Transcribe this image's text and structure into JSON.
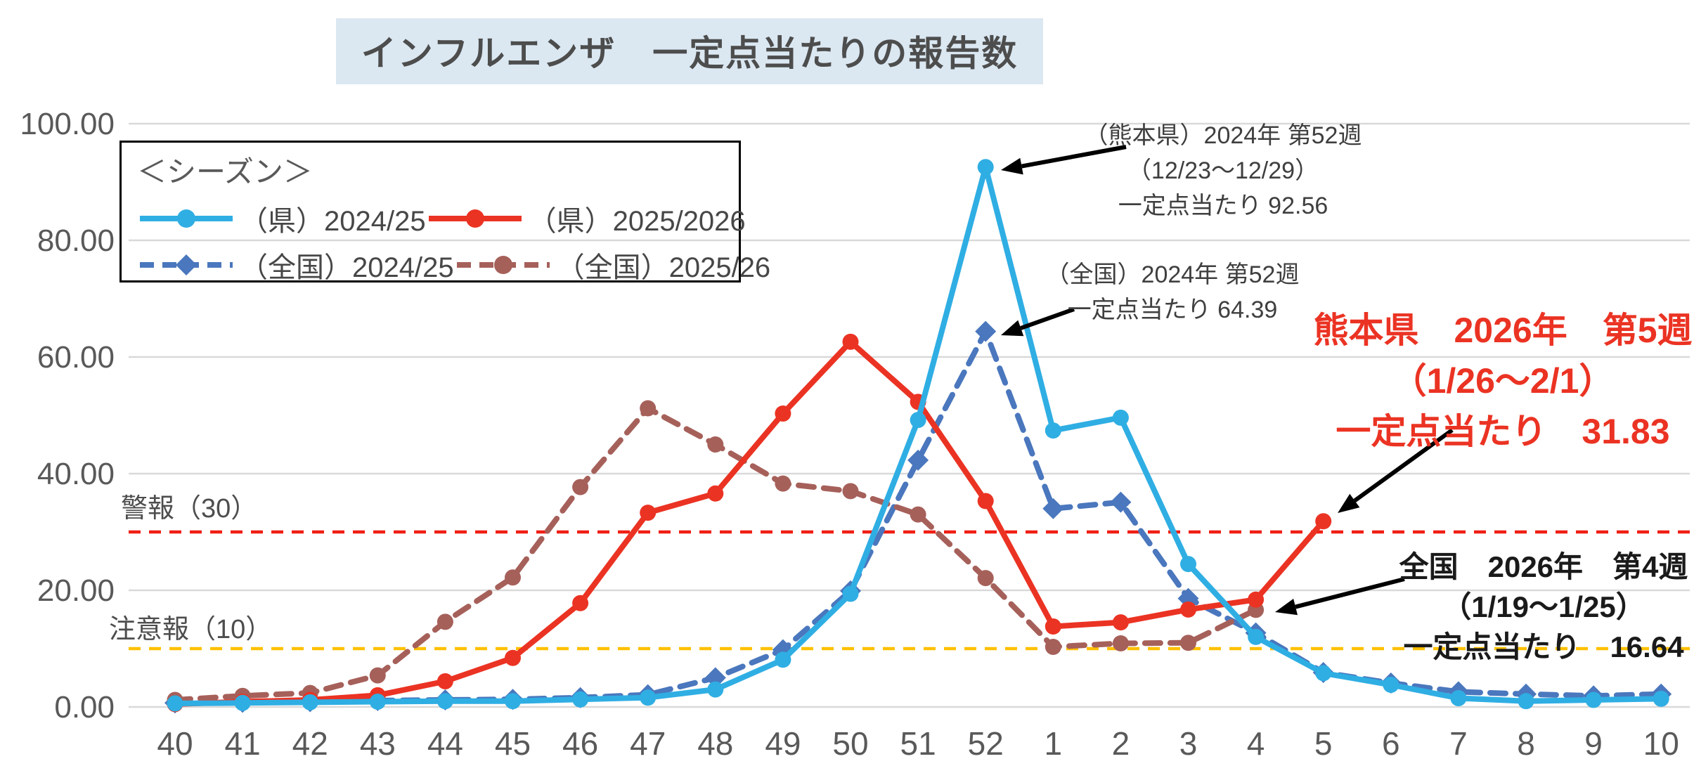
{
  "title": "インフルエンザ　一定点当たりの報告数",
  "legend": {
    "header": "＜シーズン＞"
  },
  "reference_labels": {
    "alert": "警報（30）",
    "caution": "注意報（10）"
  },
  "annotations": [
    {
      "id": "pref-peak",
      "lines": [
        "（熊本県）2024年 第52週",
        "（12/23～12/29）",
        "一定点当たり 92.56"
      ],
      "color": "#3f3f3f"
    },
    {
      "id": "national-peak",
      "lines": [
        "（全国）2024年 第52週",
        "一定点当たり 64.39"
      ],
      "color": "#3f3f3f"
    },
    {
      "id": "pref-current",
      "lines": [
        "熊本県　2026年　第5週",
        "（1/26～2/1）",
        "一定点当たり　31.83"
      ],
      "color": "#eb3323"
    },
    {
      "id": "national-current",
      "lines": [
        "全国　2026年　第4週",
        "（1/19～1/25）",
        "一定点当たり　16.64"
      ],
      "color": "#1a1a1a"
    }
  ],
  "chart_data": {
    "type": "line",
    "title": "インフルエンザ　一定点当たりの報告数",
    "xlabel": "",
    "ylabel": "",
    "ylim": [
      0,
      100
    ],
    "y_tick_labels": [
      "0.00",
      "20.00",
      "40.00",
      "60.00",
      "80.00",
      "100.00"
    ],
    "grid": true,
    "legend_position": "top-left",
    "categories": [
      "40",
      "41",
      "42",
      "43",
      "44",
      "45",
      "46",
      "47",
      "48",
      "49",
      "50",
      "51",
      "52",
      "1",
      "2",
      "3",
      "4",
      "5",
      "6",
      "7",
      "8",
      "9",
      "10"
    ],
    "series": [
      {
        "id": "pref-2024-25",
        "name": "（県）2024/25",
        "color": "#2faee3",
        "line": "solid",
        "marker": "circle",
        "values": [
          0.6,
          0.7,
          0.8,
          0.9,
          1.0,
          1.0,
          1.3,
          1.6,
          3.0,
          8.1,
          19.4,
          49.2,
          92.56,
          47.4,
          49.6,
          24.5,
          12.0,
          5.8,
          3.8,
          1.5,
          1.0,
          1.2,
          1.4
        ]
      },
      {
        "id": "pref-2025-26",
        "name": "（県）2025/2026",
        "color": "#eb3323",
        "line": "solid",
        "marker": "circle",
        "values": [
          0.5,
          0.9,
          1.2,
          2.0,
          4.4,
          8.4,
          17.8,
          33.3,
          36.6,
          50.3,
          62.6,
          52.3,
          35.3,
          13.8,
          14.5,
          16.7,
          18.4,
          31.83,
          null,
          null,
          null,
          null,
          null
        ]
      },
      {
        "id": "national-2024-25",
        "name": "（全国）2024/25",
        "color": "#4a77bd",
        "line": "dashed",
        "marker": "diamond",
        "values": [
          0.7,
          0.8,
          0.9,
          1.1,
          1.2,
          1.3,
          1.6,
          2.1,
          5.0,
          9.8,
          19.9,
          42.3,
          64.39,
          34.0,
          35.1,
          18.6,
          12.7,
          5.9,
          4.1,
          2.6,
          2.2,
          1.9,
          2.2
        ]
      },
      {
        "id": "national-2025-26",
        "name": "（全国）2025/26",
        "color": "#a6605a",
        "line": "dashed",
        "marker": "circle",
        "values": [
          1.2,
          1.9,
          2.4,
          5.4,
          14.6,
          22.2,
          37.7,
          51.2,
          45.0,
          38.3,
          37.0,
          33.0,
          22.1,
          10.3,
          10.9,
          11.0,
          16.64,
          null,
          null,
          null,
          null,
          null,
          null
        ]
      }
    ],
    "reference_lines": [
      {
        "label": "警報（30）",
        "value": 30,
        "color": "#f01e14"
      },
      {
        "label": "注意報（10）",
        "value": 10,
        "color": "#ffc000"
      }
    ],
    "annotated_points": [
      {
        "series": "pref-2024-25",
        "category": "52",
        "value": 92.56,
        "note": "（熊本県）2024年 第52週（12/23～12/29）"
      },
      {
        "series": "national-2024-25",
        "category": "52",
        "value": 64.39,
        "note": "（全国）2024年 第52週"
      },
      {
        "series": "pref-2025-26",
        "category": "5",
        "value": 31.83,
        "note": "熊本県 2026年 第5週（1/26～2/1）"
      },
      {
        "series": "national-2025-26",
        "category": "4",
        "value": 16.64,
        "note": "全国 2026年 第4週（1/19～1/25）"
      }
    ]
  }
}
